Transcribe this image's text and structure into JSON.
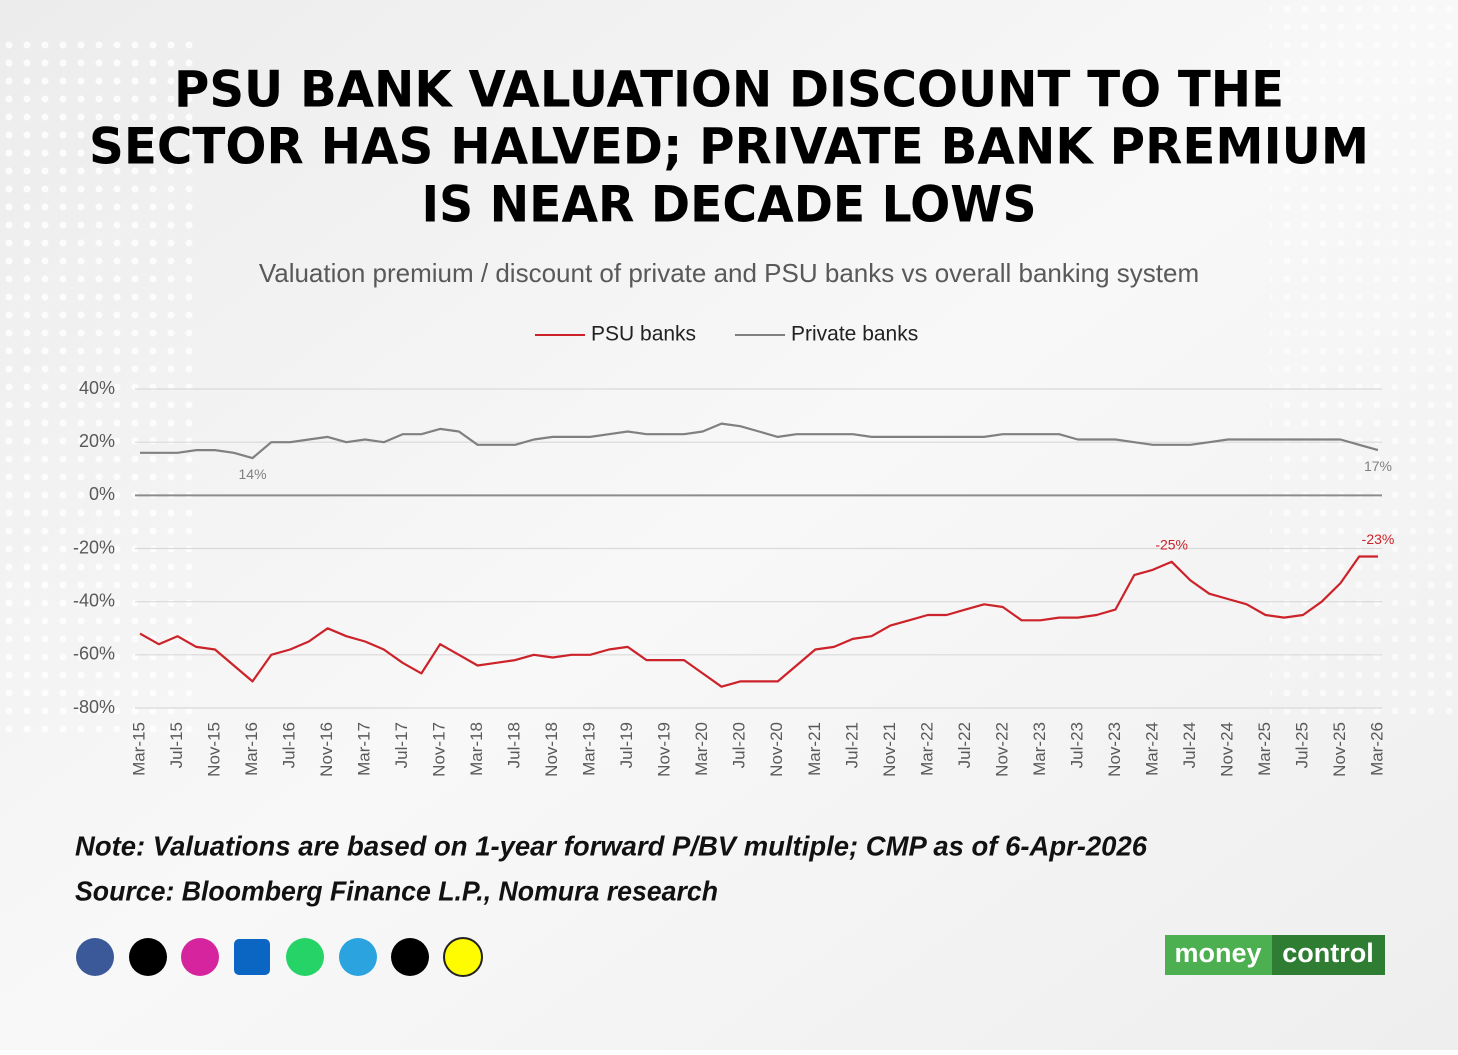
{
  "chart_data": {
    "type": "line",
    "title": [
      "PSU BANK VALUATION DISCOUNT TO THE",
      "SECTOR HAS HALVED; PRIVATE BANK PREMIUM",
      "IS NEAR DECADE LOWS"
    ],
    "subtitle": "Valuation premium / discount of private and PSU banks vs overall banking system",
    "categories": [
      "Mar-15",
      null,
      "Jul-15",
      null,
      "Nov-15",
      null,
      "Mar-16",
      null,
      "Jul-16",
      null,
      "Nov-16",
      null,
      "Mar-17",
      null,
      "Jul-17",
      null,
      "Nov-17",
      null,
      "Mar-18",
      null,
      "Jul-18",
      null,
      "Nov-18",
      null,
      "Mar-19",
      null,
      "Jul-19",
      null,
      "Nov-19",
      null,
      "Mar-20",
      null,
      "Jul-20",
      null,
      "Nov-20",
      null,
      "Mar-21",
      null,
      "Jul-21",
      null,
      "Nov-21",
      null,
      "Mar-22",
      null,
      "Jul-22",
      null,
      "Nov-22",
      null,
      "Mar-23",
      null,
      "Jul-23",
      null,
      "Nov-23",
      null,
      "Mar-24",
      null,
      "Jul-24",
      null,
      "Nov-24",
      null,
      "Mar-25",
      null,
      "Jul-25",
      null,
      "Nov-25",
      null,
      "Mar-26"
    ],
    "series": [
      {
        "name": "PSU banks",
        "color": "#cc2229",
        "values": [
          -52,
          -56,
          -53,
          -57,
          -58,
          -64,
          -70,
          -60,
          -58,
          -55,
          -50,
          -53,
          -55,
          -58,
          -63,
          -67,
          -56,
          -60,
          -64,
          -63,
          -62,
          -60,
          -61,
          -60,
          -60,
          -58,
          -57,
          -62,
          -62,
          -62,
          -67,
          -72,
          -70,
          -70,
          -70,
          -64,
          -58,
          -57,
          -54,
          -53,
          -49,
          -47,
          -45,
          -45,
          -43,
          -41,
          -42,
          -47,
          -47,
          -46,
          -46,
          -45,
          -43,
          -30,
          -28,
          -25,
          -32,
          -37,
          -39,
          -41,
          -45,
          -46,
          -45,
          -40,
          -33,
          -23,
          -23
        ],
        "value_labels": [
          null,
          null,
          null,
          null,
          null,
          null,
          null,
          null,
          null,
          null,
          null,
          null,
          null,
          null,
          null,
          null,
          null,
          null,
          null,
          null,
          null,
          null,
          null,
          null,
          null,
          null,
          null,
          null,
          null,
          null,
          null,
          null,
          null,
          null,
          null,
          null,
          null,
          null,
          null,
          null,
          null,
          null,
          null,
          null,
          null,
          null,
          null,
          null,
          null,
          null,
          null,
          null,
          null,
          null,
          null,
          "-25%",
          null,
          null,
          null,
          null,
          null,
          null,
          null,
          null,
          null,
          null,
          "-23%"
        ]
      },
      {
        "name": "Private banks",
        "color": "#808080",
        "values": [
          16,
          16,
          16,
          17,
          17,
          16,
          14,
          20,
          20,
          21,
          22,
          20,
          21,
          20,
          23,
          23,
          25,
          24,
          19,
          19,
          19,
          21,
          22,
          22,
          22,
          23,
          24,
          23,
          23,
          23,
          24,
          27,
          26,
          24,
          22,
          23,
          23,
          23,
          23,
          22,
          22,
          22,
          22,
          22,
          22,
          22,
          23,
          23,
          23,
          23,
          21,
          21,
          21,
          20,
          19,
          19,
          19,
          20,
          21,
          21,
          21,
          21,
          21,
          21,
          21,
          19,
          17
        ],
        "value_labels": [
          null,
          null,
          null,
          null,
          null,
          null,
          "14%",
          null,
          null,
          null,
          null,
          null,
          null,
          null,
          null,
          null,
          null,
          null,
          null,
          null,
          null,
          null,
          null,
          null,
          null,
          null,
          null,
          null,
          null,
          null,
          null,
          null,
          null,
          null,
          null,
          null,
          null,
          null,
          null,
          null,
          null,
          null,
          null,
          null,
          null,
          null,
          null,
          null,
          null,
          null,
          null,
          null,
          null,
          null,
          null,
          null,
          null,
          null,
          null,
          null,
          null,
          null,
          null,
          null,
          null,
          null,
          "17%"
        ]
      }
    ],
    "ylim": [
      -80,
      40
    ],
    "yticks": [
      {
        "value": -80,
        "label": "-80%"
      },
      {
        "value": -60,
        "label": "-60%"
      },
      {
        "value": -40,
        "label": "-40%"
      },
      {
        "value": -20,
        "label": "-20%"
      },
      {
        "value": 0,
        "label": "0%"
      },
      {
        "value": 20,
        "label": "20%"
      },
      {
        "value": 40,
        "label": "40%"
      }
    ],
    "grid": true,
    "legend": "top",
    "note": "Note: Valuations are based on 1-year forward P/BV multiple; CMP as of 6-Apr-2026",
    "source": "Source: Bloomberg Finance L.P., Nomura research",
    "brand": [
      "money",
      "control"
    ]
  }
}
